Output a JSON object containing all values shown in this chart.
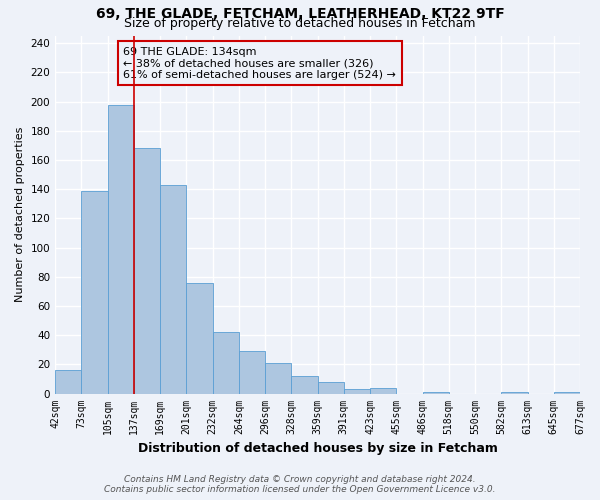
{
  "title": "69, THE GLADE, FETCHAM, LEATHERHEAD, KT22 9TF",
  "subtitle": "Size of property relative to detached houses in Fetcham",
  "xlabel": "Distribution of detached houses by size in Fetcham",
  "ylabel": "Number of detached properties",
  "bin_labels": [
    "42sqm",
    "73sqm",
    "105sqm",
    "137sqm",
    "169sqm",
    "201sqm",
    "232sqm",
    "264sqm",
    "296sqm",
    "328sqm",
    "359sqm",
    "391sqm",
    "423sqm",
    "455sqm",
    "486sqm",
    "518sqm",
    "550sqm",
    "582sqm",
    "613sqm",
    "645sqm",
    "677sqm"
  ],
  "bar_heights": [
    16,
    139,
    198,
    168,
    143,
    76,
    42,
    29,
    21,
    12,
    8,
    3,
    4,
    0,
    1,
    0,
    0,
    1,
    0,
    1
  ],
  "bar_color": "#adc6e0",
  "bar_edge_color": "#5a9fd4",
  "reference_bar_index": 3,
  "reference_line_color": "#cc0000",
  "annotation_line1": "69 THE GLADE: 134sqm",
  "annotation_line2": "← 38% of detached houses are smaller (326)",
  "annotation_line3": "61% of semi-detached houses are larger (524) →",
  "annotation_box_edge_color": "#cc0000",
  "ytick_interval": 20,
  "ylim": [
    0,
    245
  ],
  "footer_line1": "Contains HM Land Registry data © Crown copyright and database right 2024.",
  "footer_line2": "Contains public sector information licensed under the Open Government Licence v3.0.",
  "background_color": "#eef2f9",
  "grid_color": "#ffffff",
  "title_fontsize": 10,
  "subtitle_fontsize": 9,
  "xlabel_fontsize": 9,
  "ylabel_fontsize": 8,
  "tick_label_fontsize": 7,
  "annotation_fontsize": 8,
  "footer_fontsize": 6.5
}
